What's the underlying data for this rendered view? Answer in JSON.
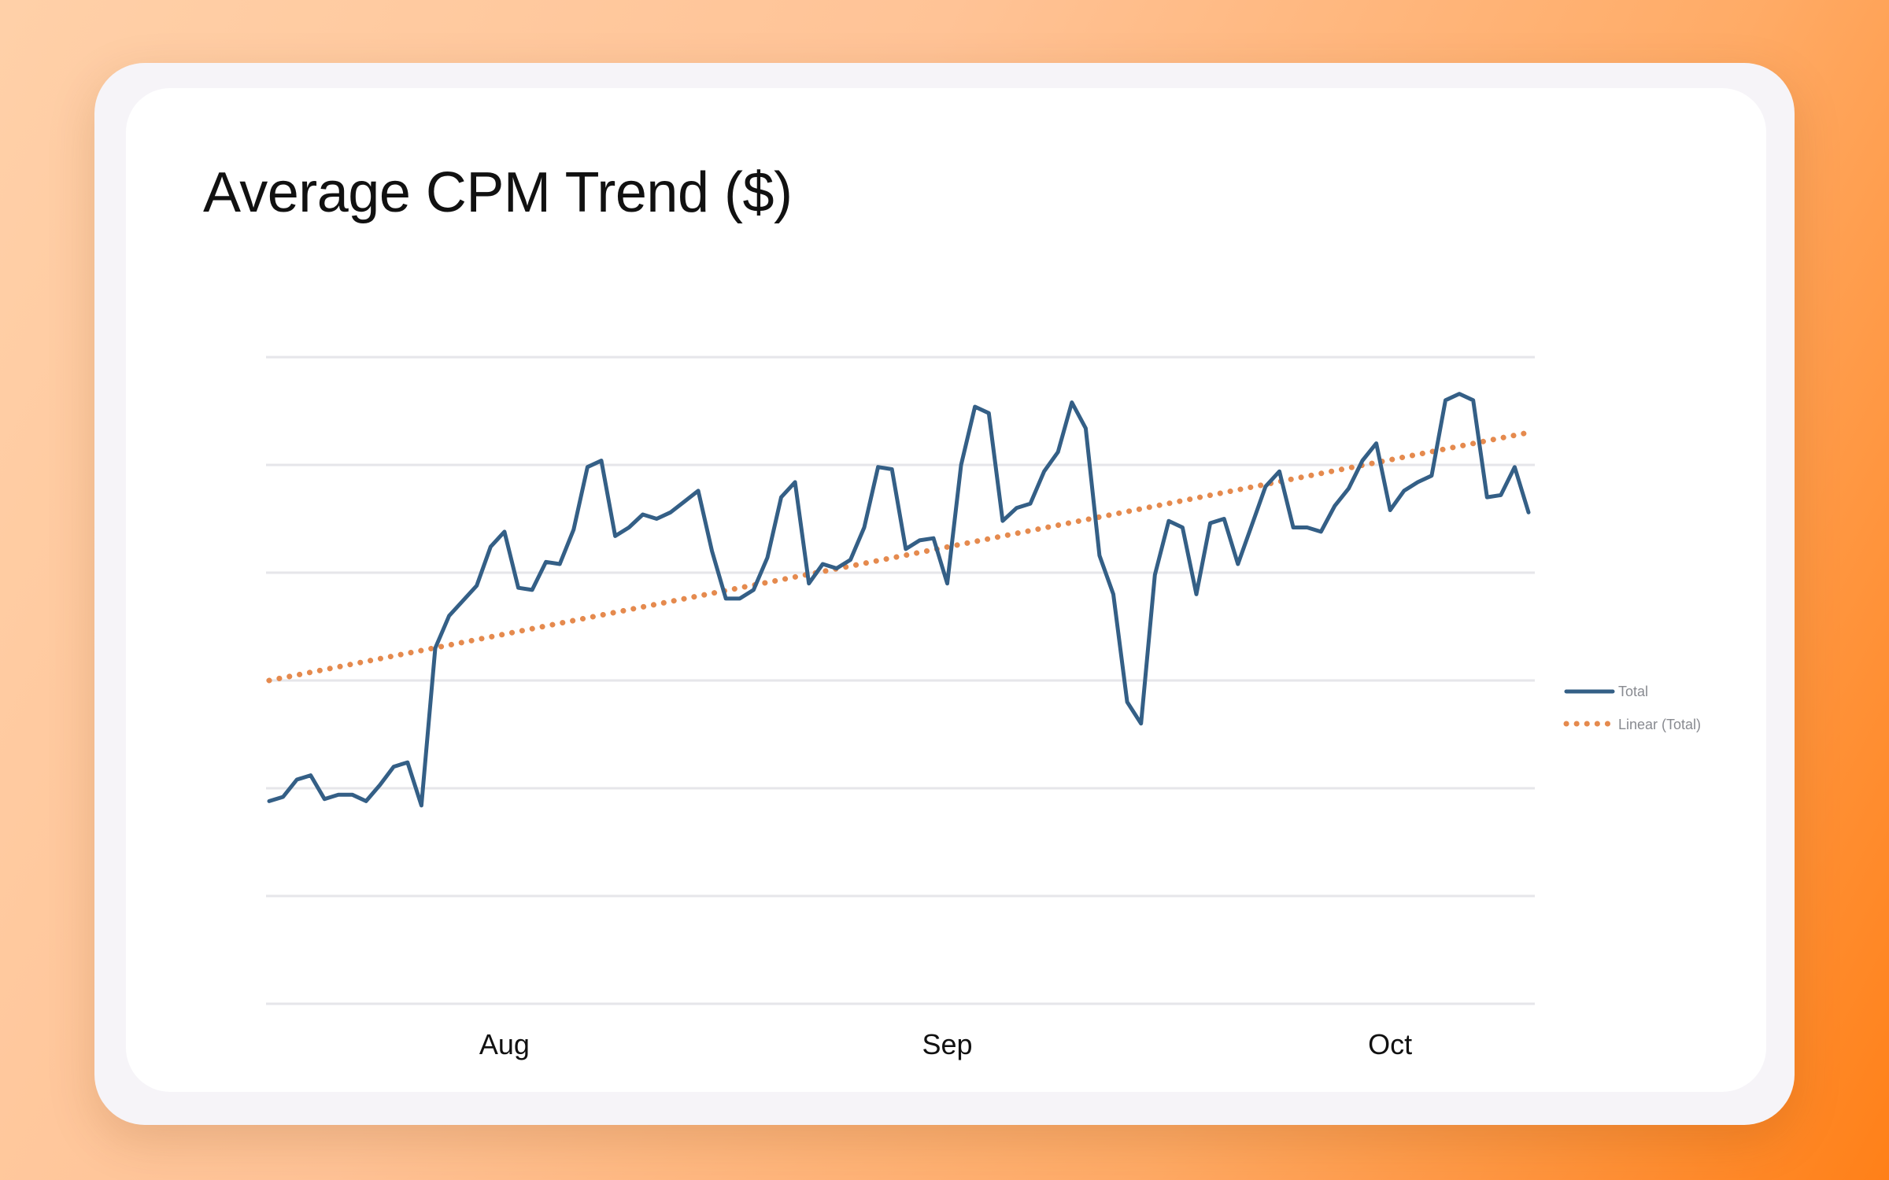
{
  "chart_data": {
    "type": "line",
    "title": "Average CPM Trend ($)",
    "xlabel": "",
    "ylabel": "",
    "x_tick_labels": [
      {
        "label": "Aug",
        "index": 17
      },
      {
        "label": "Sep",
        "index": 49
      },
      {
        "label": "Oct",
        "index": 81
      }
    ],
    "y_gridlines": 7,
    "ylim": [
      0,
      6
    ],
    "legend": {
      "placement": "right",
      "entries": [
        "Total",
        "Linear (Total)"
      ]
    },
    "series": [
      {
        "name": "Total",
        "color": "#345f86",
        "style": "solid",
        "values": [
          1.88,
          1.92,
          2.08,
          2.12,
          1.9,
          1.94,
          1.94,
          1.88,
          2.03,
          2.2,
          2.24,
          1.84,
          3.3,
          3.6,
          3.74,
          3.88,
          4.24,
          4.38,
          3.86,
          3.84,
          4.1,
          4.08,
          4.4,
          4.98,
          5.04,
          4.34,
          4.42,
          4.54,
          4.5,
          4.56,
          4.66,
          4.76,
          4.2,
          3.76,
          3.76,
          3.84,
          4.14,
          4.7,
          4.84,
          3.9,
          4.08,
          4.04,
          4.12,
          4.42,
          4.98,
          4.96,
          4.22,
          4.3,
          4.32,
          3.9,
          5.0,
          5.54,
          5.48,
          4.48,
          4.6,
          4.64,
          4.94,
          5.12,
          5.58,
          5.34,
          4.16,
          3.8,
          2.8,
          2.6,
          3.98,
          4.48,
          4.42,
          3.8,
          4.46,
          4.5,
          4.08,
          4.44,
          4.8,
          4.94,
          4.42,
          4.42,
          4.38,
          4.62,
          4.78,
          5.04,
          5.2,
          4.58,
          4.76,
          4.84,
          4.9,
          5.6,
          5.66,
          5.6,
          4.7,
          4.72,
          4.98,
          4.56
        ]
      },
      {
        "name": "Linear (Total)",
        "color": "#e58a4e",
        "style": "dotted",
        "values": [
          3.0,
          5.3
        ]
      }
    ]
  }
}
